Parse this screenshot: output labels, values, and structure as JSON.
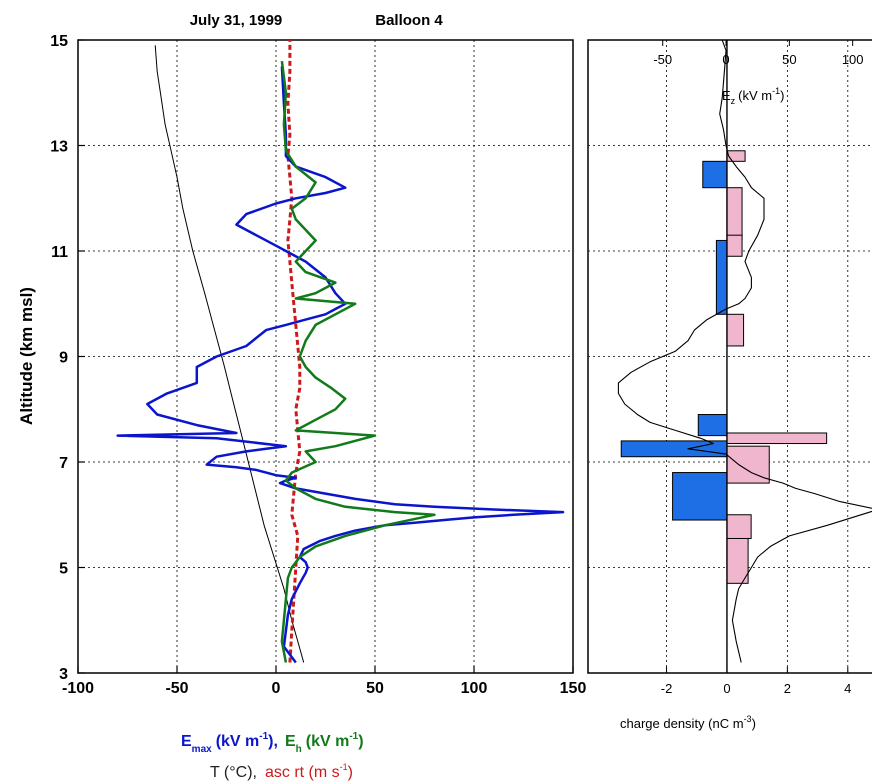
{
  "title": {
    "date": "July 31, 1999",
    "balloon": "Balloon 4"
  },
  "colors": {
    "emax": "#0b16cc",
    "eh": "#117a1a",
    "temp": "#000000",
    "asc": "#cc1a1a",
    "neg_charge": "#1e6fe6",
    "pos_charge": "#f0b6cd",
    "ez": "#000000"
  },
  "chart_data": [
    {
      "type": "line",
      "ylabel": "Altitude (km msl)",
      "ylim": [
        3,
        15
      ],
      "xlim": [
        -100,
        150
      ],
      "grid": true,
      "yticks": [
        "3",
        "5",
        "7",
        "9",
        "11",
        "13",
        "15"
      ],
      "xticks": [
        "-100",
        "-50",
        "0",
        "50",
        "100",
        "150"
      ],
      "xlabel": {
        "e_main": "E",
        "e_sub": "max",
        "e_units": "(kV m",
        "e_sup": "-1",
        "e_close": "),",
        "h_main": "E",
        "h_sub": "h",
        "h_units": "(kV m",
        "h_sup": "-1",
        "h_close": ")",
        "t_label": "T (°C),",
        "asc_label": "asc rt (m s",
        "asc_sup": "-1",
        "asc_close": ")"
      },
      "series": [
        {
          "key": "emax",
          "name": "Emax",
          "x": [
            10,
            4,
            5,
            6,
            8,
            12,
            15,
            16,
            15,
            12,
            14,
            22,
            30,
            40,
            55,
            70,
            85,
            100,
            120,
            145,
            110,
            80,
            60,
            40,
            25,
            10,
            2,
            5,
            10,
            0,
            -10,
            -20,
            -35,
            -30,
            -15,
            -5,
            5,
            -30,
            -80,
            -20,
            -40,
            -60,
            -65,
            -55,
            -40,
            -40,
            -30,
            -15,
            -10,
            -5,
            5,
            15,
            25,
            30,
            35,
            30,
            25,
            15,
            5,
            0,
            -10,
            -20,
            -15,
            0,
            10,
            25,
            35,
            25,
            10,
            5,
            5,
            4,
            3
          ],
          "y": [
            3.2,
            3.5,
            3.8,
            4.1,
            4.4,
            4.7,
            4.9,
            5.0,
            5.1,
            5.2,
            5.35,
            5.5,
            5.6,
            5.7,
            5.8,
            5.85,
            5.9,
            5.95,
            6.0,
            6.05,
            6.1,
            6.15,
            6.2,
            6.3,
            6.4,
            6.5,
            6.6,
            6.65,
            6.7,
            6.75,
            6.85,
            6.9,
            6.95,
            7.1,
            7.2,
            7.25,
            7.3,
            7.45,
            7.5,
            7.55,
            7.7,
            7.9,
            8.1,
            8.3,
            8.5,
            8.8,
            9.0,
            9.2,
            9.35,
            9.5,
            9.6,
            9.7,
            9.8,
            9.9,
            10.0,
            10.2,
            10.5,
            10.8,
            11.0,
            11.1,
            11.3,
            11.5,
            11.7,
            11.9,
            12.0,
            12.1,
            12.2,
            12.4,
            12.6,
            12.8,
            13.2,
            13.8,
            14.5
          ]
        },
        {
          "key": "eh",
          "name": "Eh",
          "x": [
            5,
            3,
            4,
            5,
            6,
            8,
            12,
            20,
            35,
            55,
            80,
            60,
            35,
            20,
            10,
            5,
            8,
            20,
            15,
            30,
            50,
            10,
            20,
            30,
            35,
            28,
            20,
            15,
            12,
            15,
            20,
            30,
            40,
            10,
            20,
            30,
            15,
            10,
            15,
            20,
            15,
            10,
            8,
            15,
            20,
            10,
            5,
            4,
            5,
            3
          ],
          "y": [
            3.2,
            3.6,
            4.0,
            4.4,
            4.8,
            5.0,
            5.2,
            5.4,
            5.6,
            5.8,
            6.0,
            6.05,
            6.15,
            6.3,
            6.5,
            6.65,
            6.8,
            7.0,
            7.2,
            7.3,
            7.5,
            7.6,
            7.8,
            8.0,
            8.2,
            8.4,
            8.6,
            8.8,
            9.0,
            9.3,
            9.6,
            9.8,
            10.0,
            10.1,
            10.2,
            10.4,
            10.6,
            10.8,
            11.0,
            11.2,
            11.4,
            11.6,
            11.8,
            12.0,
            12.3,
            12.6,
            12.9,
            13.4,
            14.0,
            14.6
          ]
        },
        {
          "key": "temp",
          "name": "T",
          "x": [
            14,
            11,
            8,
            4,
            -1,
            -6,
            -10,
            -14,
            -18,
            -22,
            -26,
            -31,
            -36,
            -42,
            -47,
            -50,
            -53,
            -56,
            -58,
            -60,
            -61
          ],
          "y": [
            3.2,
            3.6,
            4.0,
            4.6,
            5.2,
            5.8,
            6.4,
            7.0,
            7.6,
            8.2,
            8.8,
            9.5,
            10.2,
            11.0,
            11.8,
            12.4,
            12.9,
            13.4,
            13.9,
            14.4,
            14.9
          ]
        },
        {
          "key": "asc",
          "name": "asc rt",
          "x": [
            7,
            8,
            9,
            10,
            11,
            8,
            9,
            10,
            12,
            11,
            10,
            12,
            12,
            11,
            10,
            9,
            8,
            7,
            6,
            7,
            8,
            7,
            6,
            7,
            6,
            7,
            7
          ],
          "y": [
            3.2,
            3.8,
            4.4,
            5.0,
            5.6,
            6.0,
            6.4,
            6.8,
            7.2,
            7.6,
            8.0,
            8.4,
            8.8,
            9.2,
            9.6,
            10.0,
            10.4,
            10.8,
            11.2,
            11.6,
            12.0,
            12.4,
            12.8,
            13.2,
            13.8,
            14.4,
            15.0
          ]
        }
      ]
    },
    {
      "type": "bar",
      "orientation": "horizontal",
      "xlim": [
        -4.6,
        5.0
      ],
      "ylim": [
        3,
        15
      ],
      "grid": true,
      "xticks": [
        "-2",
        "0",
        "2",
        "4"
      ],
      "xlabel": {
        "main": "charge density (nC m",
        "sup": "-3",
        "close": ")"
      },
      "bars": [
        {
          "y0": 12.2,
          "y1": 12.7,
          "value": -0.8
        },
        {
          "y0": 12.7,
          "y1": 12.9,
          "value": 0.6
        },
        {
          "y0": 11.2,
          "y1": 12.2,
          "value": 0.5
        },
        {
          "y0": 10.9,
          "y1": 11.3,
          "value": 0.5
        },
        {
          "y0": 9.8,
          "y1": 11.2,
          "value": -0.35
        },
        {
          "y0": 9.2,
          "y1": 9.8,
          "value": 0.55
        },
        {
          "y0": 7.5,
          "y1": 7.9,
          "value": -0.95
        },
        {
          "y0": 7.35,
          "y1": 7.55,
          "value": 3.3
        },
        {
          "y0": 6.6,
          "y1": 7.3,
          "value": 1.4
        },
        {
          "y0": 7.1,
          "y1": 7.4,
          "value": -3.5
        },
        {
          "y0": 5.9,
          "y1": 6.8,
          "value": -1.8
        },
        {
          "y0": 5.55,
          "y1": 6.0,
          "value": 0.8
        },
        {
          "y0": 4.7,
          "y1": 5.55,
          "value": 0.7
        }
      ],
      "secondary_axis": {
        "label_main": "E",
        "label_sub": "z",
        "label_units": "(kV m",
        "label_sup": "-1",
        "label_close": ")",
        "xlim": [
          -109,
          120
        ],
        "xticks": [
          "-50",
          "0",
          "50",
          "100"
        ]
      },
      "ez_profile": {
        "x": [
          12,
          8,
          5,
          8,
          10,
          15,
          20,
          25,
          35,
          50,
          80,
          120,
          90,
          70,
          55,
          45,
          30,
          20,
          10,
          5,
          0,
          -30,
          -20,
          -10,
          -20,
          -40,
          -60,
          -70,
          -80,
          -85,
          -85,
          -75,
          -60,
          -40,
          -30,
          -25,
          -15,
          0,
          10,
          15,
          20,
          20,
          15,
          18,
          25,
          30,
          30,
          30,
          20,
          15,
          8,
          2,
          0,
          -2,
          -5,
          -3,
          -2,
          -1,
          0,
          -3
        ],
        "y": [
          3.2,
          3.6,
          4.0,
          4.4,
          4.6,
          4.8,
          5.0,
          5.2,
          5.4,
          5.6,
          5.8,
          6.1,
          6.25,
          6.4,
          6.5,
          6.6,
          6.7,
          6.8,
          6.95,
          7.05,
          7.15,
          7.25,
          7.3,
          7.35,
          7.45,
          7.6,
          7.75,
          7.9,
          8.1,
          8.3,
          8.5,
          8.7,
          8.9,
          9.1,
          9.3,
          9.5,
          9.7,
          9.9,
          10.0,
          10.1,
          10.3,
          10.5,
          10.8,
          11.0,
          11.3,
          11.6,
          11.8,
          12.0,
          12.2,
          12.4,
          12.6,
          12.8,
          13.0,
          13.3,
          13.6,
          13.9,
          14.2,
          14.5,
          14.8,
          15.0
        ]
      }
    }
  ]
}
